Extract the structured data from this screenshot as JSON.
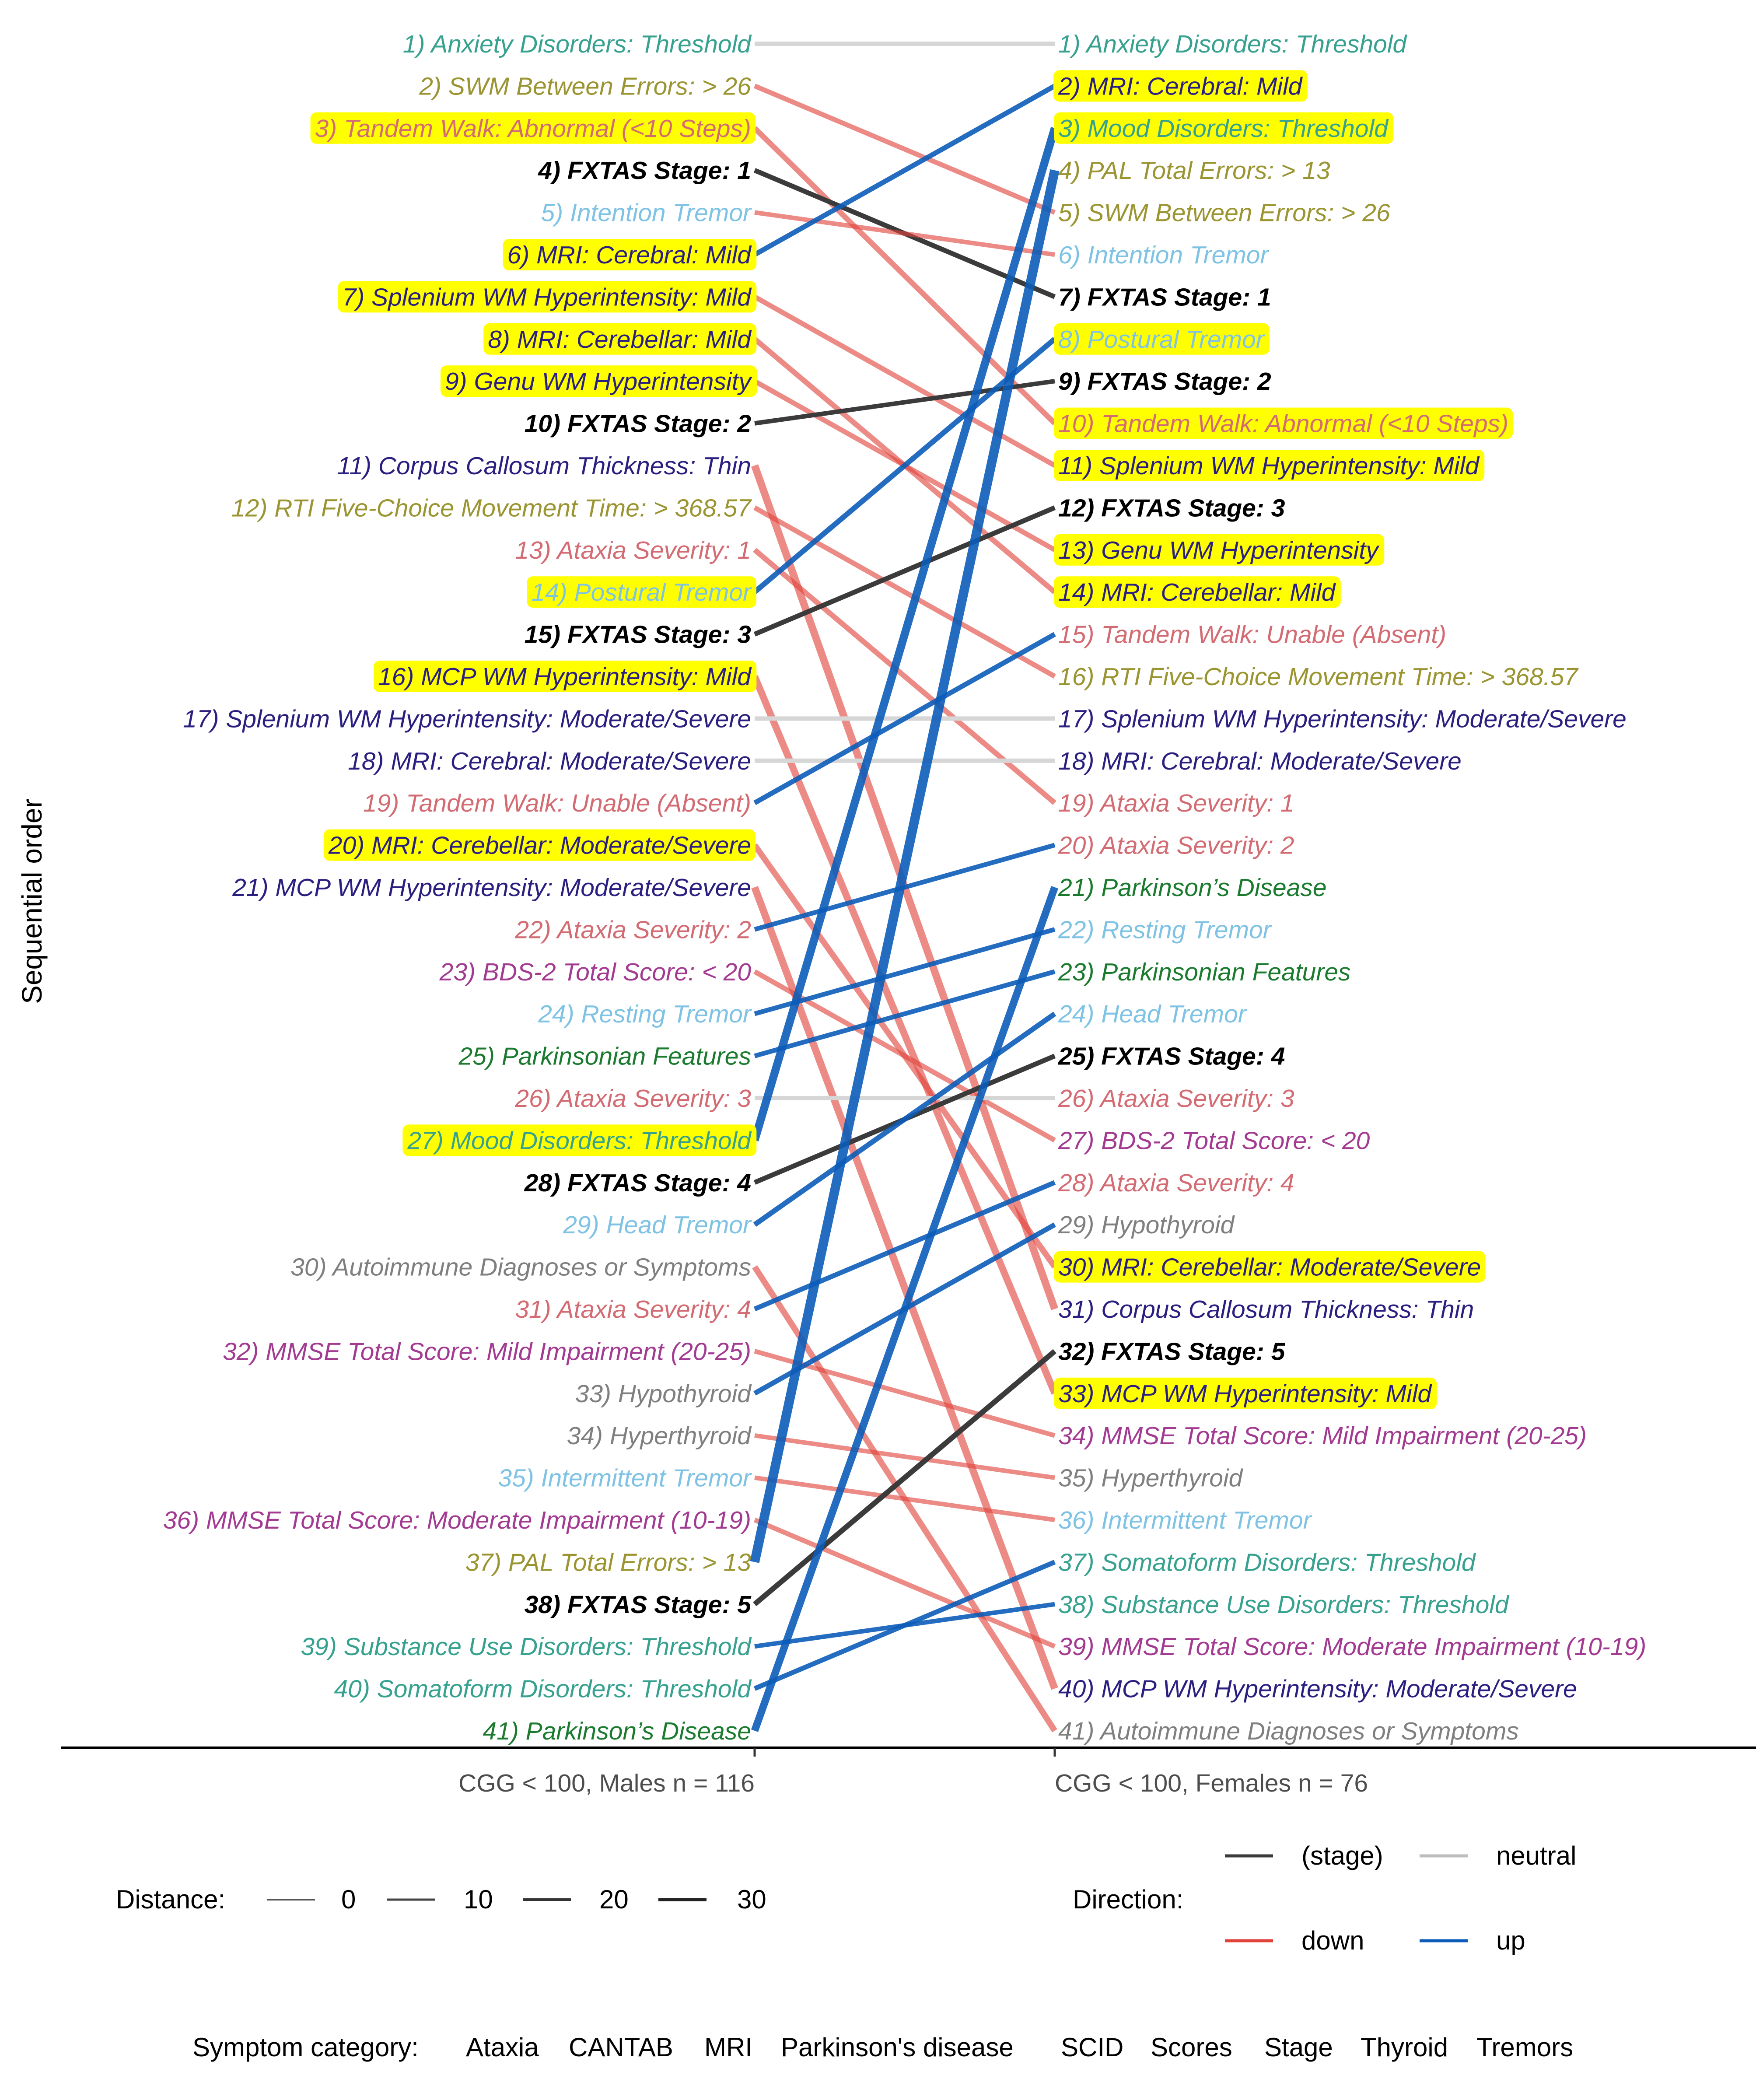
{
  "chart_data": {
    "type": "slope",
    "ylabel": "Sequential order",
    "columns": [
      "CGG < 100, Males n = 116",
      "CGG < 100, Females n = 76"
    ],
    "category_colors": {
      "Ataxia": "#d36b73",
      "CANTAB": "#9a9431",
      "MRI": "#2a1f80",
      "Parkinson's disease": "#1a7a2e",
      "SCID": "#36a18f",
      "Scores": "#a33a92",
      "Stage": "#000000",
      "Thyroid": "#7f7f7f",
      "Tremors": "#7ec2e4"
    },
    "direction_colors": {
      "(stage)": "#3b3b3b",
      "neutral": "#d6d6d6",
      "down": "#e0433b",
      "up": "#0b5cb8"
    },
    "highlight_color": "#ffff00",
    "males": [
      {
        "label": "1) Anxiety Disorders: Threshold",
        "cat": "SCID"
      },
      {
        "label": "2) SWM Between Errors: > 26",
        "cat": "CANTAB"
      },
      {
        "label": "3) Tandem Walk: Abnormal (<10 Steps)",
        "cat": "Ataxia",
        "hl": true
      },
      {
        "label": "4) FXTAS Stage: 1",
        "cat": "Stage"
      },
      {
        "label": "5) Intention Tremor",
        "cat": "Tremors"
      },
      {
        "label": "6) MRI: Cerebral: Mild",
        "cat": "MRI",
        "hl": true
      },
      {
        "label": "7) Splenium WM Hyperintensity: Mild",
        "cat": "MRI",
        "hl": true
      },
      {
        "label": "8) MRI: Cerebellar: Mild",
        "cat": "MRI",
        "hl": true
      },
      {
        "label": "9) Genu WM Hyperintensity",
        "cat": "MRI",
        "hl": true
      },
      {
        "label": "10) FXTAS Stage: 2",
        "cat": "Stage"
      },
      {
        "label": "11) Corpus Callosum Thickness: Thin",
        "cat": "MRI"
      },
      {
        "label": "12) RTI Five-Choice Movement Time: > 368.57",
        "cat": "CANTAB"
      },
      {
        "label": "13) Ataxia Severity: 1",
        "cat": "Ataxia"
      },
      {
        "label": "14) Postural Tremor",
        "cat": "Tremors",
        "hl": true
      },
      {
        "label": "15) FXTAS Stage: 3",
        "cat": "Stage"
      },
      {
        "label": "16) MCP WM Hyperintensity: Mild",
        "cat": "MRI",
        "hl": true
      },
      {
        "label": "17) Splenium WM Hyperintensity: Moderate/Severe",
        "cat": "MRI"
      },
      {
        "label": "18) MRI: Cerebral: Moderate/Severe",
        "cat": "MRI"
      },
      {
        "label": "19) Tandem Walk: Unable (Absent)",
        "cat": "Ataxia"
      },
      {
        "label": "20) MRI: Cerebellar: Moderate/Severe",
        "cat": "MRI",
        "hl": true
      },
      {
        "label": "21) MCP WM Hyperintensity: Moderate/Severe",
        "cat": "MRI"
      },
      {
        "label": "22) Ataxia Severity: 2",
        "cat": "Ataxia"
      },
      {
        "label": "23) BDS-2 Total Score: < 20",
        "cat": "Scores"
      },
      {
        "label": "24) Resting Tremor",
        "cat": "Tremors"
      },
      {
        "label": "25) Parkinsonian Features",
        "cat": "Parkinson's disease"
      },
      {
        "label": "26) Ataxia Severity: 3",
        "cat": "Ataxia"
      },
      {
        "label": "27) Mood Disorders: Threshold",
        "cat": "SCID",
        "hl": true
      },
      {
        "label": "28) FXTAS Stage: 4",
        "cat": "Stage"
      },
      {
        "label": "29) Head Tremor",
        "cat": "Tremors"
      },
      {
        "label": "30) Autoimmune Diagnoses or Symptoms",
        "cat": "Thyroid"
      },
      {
        "label": "31) Ataxia Severity: 4",
        "cat": "Ataxia"
      },
      {
        "label": "32) MMSE Total Score: Mild Impairment (20-25)",
        "cat": "Scores"
      },
      {
        "label": "33) Hypothyroid",
        "cat": "Thyroid"
      },
      {
        "label": "34) Hyperthyroid",
        "cat": "Thyroid"
      },
      {
        "label": "35) Intermittent Tremor",
        "cat": "Tremors"
      },
      {
        "label": "36) MMSE Total Score: Moderate Impairment (10-19)",
        "cat": "Scores"
      },
      {
        "label": "37) PAL Total Errors: > 13",
        "cat": "CANTAB"
      },
      {
        "label": "38) FXTAS Stage: 5",
        "cat": "Stage"
      },
      {
        "label": "39) Substance Use Disorders: Threshold",
        "cat": "SCID"
      },
      {
        "label": "40) Somatoform Disorders: Threshold",
        "cat": "SCID"
      },
      {
        "label": "41) Parkinson’s Disease",
        "cat": "Parkinson's disease"
      }
    ],
    "females": [
      {
        "label": "1) Anxiety Disorders: Threshold",
        "cat": "SCID"
      },
      {
        "label": "2) MRI: Cerebral: Mild",
        "cat": "MRI",
        "hl": true
      },
      {
        "label": "3) Mood Disorders: Threshold",
        "cat": "SCID",
        "hl": true
      },
      {
        "label": "4) PAL Total Errors: > 13",
        "cat": "CANTAB"
      },
      {
        "label": "5) SWM Between Errors: > 26",
        "cat": "CANTAB"
      },
      {
        "label": "6) Intention Tremor",
        "cat": "Tremors"
      },
      {
        "label": "7) FXTAS Stage: 1",
        "cat": "Stage"
      },
      {
        "label": "8) Postural Tremor",
        "cat": "Tremors",
        "hl": true
      },
      {
        "label": "9) FXTAS Stage: 2",
        "cat": "Stage"
      },
      {
        "label": "10) Tandem Walk: Abnormal (<10 Steps)",
        "cat": "Ataxia",
        "hl": true
      },
      {
        "label": "11) Splenium WM Hyperintensity: Mild",
        "cat": "MRI",
        "hl": true
      },
      {
        "label": "12) FXTAS Stage: 3",
        "cat": "Stage"
      },
      {
        "label": "13) Genu WM Hyperintensity",
        "cat": "MRI",
        "hl": true
      },
      {
        "label": "14) MRI: Cerebellar: Mild",
        "cat": "MRI",
        "hl": true
      },
      {
        "label": "15) Tandem Walk: Unable (Absent)",
        "cat": "Ataxia"
      },
      {
        "label": "16) RTI Five-Choice Movement Time: > 368.57",
        "cat": "CANTAB"
      },
      {
        "label": "17) Splenium WM Hyperintensity: Moderate/Severe",
        "cat": "MRI"
      },
      {
        "label": "18) MRI: Cerebral: Moderate/Severe",
        "cat": "MRI"
      },
      {
        "label": "19) Ataxia Severity: 1",
        "cat": "Ataxia"
      },
      {
        "label": "20) Ataxia Severity: 2",
        "cat": "Ataxia"
      },
      {
        "label": "21) Parkinson’s Disease",
        "cat": "Parkinson's disease"
      },
      {
        "label": "22) Resting Tremor",
        "cat": "Tremors"
      },
      {
        "label": "23) Parkinsonian Features",
        "cat": "Parkinson's disease"
      },
      {
        "label": "24) Head Tremor",
        "cat": "Tremors"
      },
      {
        "label": "25) FXTAS Stage: 4",
        "cat": "Stage"
      },
      {
        "label": "26) Ataxia Severity: 3",
        "cat": "Ataxia"
      },
      {
        "label": "27) BDS-2 Total Score: < 20",
        "cat": "Scores"
      },
      {
        "label": "28) Ataxia Severity: 4",
        "cat": "Ataxia"
      },
      {
        "label": "29) Hypothyroid",
        "cat": "Thyroid"
      },
      {
        "label": "30) MRI: Cerebellar: Moderate/Severe",
        "cat": "MRI",
        "hl": true
      },
      {
        "label": "31) Corpus Callosum Thickness: Thin",
        "cat": "MRI"
      },
      {
        "label": "32) FXTAS Stage: 5",
        "cat": "Stage"
      },
      {
        "label": "33) MCP WM Hyperintensity: Mild",
        "cat": "MRI",
        "hl": true
      },
      {
        "label": "34) MMSE Total Score: Mild Impairment (20-25)",
        "cat": "Scores"
      },
      {
        "label": "35) Hyperthyroid",
        "cat": "Thyroid"
      },
      {
        "label": "36) Intermittent Tremor",
        "cat": "Tremors"
      },
      {
        "label": "37) Somatoform Disorders: Threshold",
        "cat": "SCID"
      },
      {
        "label": "38) Substance Use Disorders: Threshold",
        "cat": "SCID"
      },
      {
        "label": "39) MMSE Total Score: Moderate Impairment (10-19)",
        "cat": "Scores"
      },
      {
        "label": "40) MCP WM Hyperintensity: Moderate/Severe",
        "cat": "MRI"
      },
      {
        "label": "41) Autoimmune Diagnoses or Symptoms",
        "cat": "Thyroid"
      }
    ],
    "connections": [
      {
        "m": 1,
        "f": 1,
        "dir": "neutral"
      },
      {
        "m": 2,
        "f": 5,
        "dir": "down"
      },
      {
        "m": 3,
        "f": 10,
        "dir": "down"
      },
      {
        "m": 4,
        "f": 7,
        "dir": "(stage)"
      },
      {
        "m": 5,
        "f": 6,
        "dir": "down"
      },
      {
        "m": 6,
        "f": 2,
        "dir": "up"
      },
      {
        "m": 7,
        "f": 11,
        "dir": "down"
      },
      {
        "m": 8,
        "f": 14,
        "dir": "down"
      },
      {
        "m": 9,
        "f": 13,
        "dir": "down"
      },
      {
        "m": 10,
        "f": 9,
        "dir": "(stage)"
      },
      {
        "m": 11,
        "f": 31,
        "dir": "down"
      },
      {
        "m": 12,
        "f": 16,
        "dir": "down"
      },
      {
        "m": 13,
        "f": 19,
        "dir": "down"
      },
      {
        "m": 14,
        "f": 8,
        "dir": "up"
      },
      {
        "m": 15,
        "f": 12,
        "dir": "(stage)"
      },
      {
        "m": 16,
        "f": 33,
        "dir": "down"
      },
      {
        "m": 17,
        "f": 17,
        "dir": "neutral"
      },
      {
        "m": 18,
        "f": 18,
        "dir": "neutral"
      },
      {
        "m": 19,
        "f": 15,
        "dir": "up"
      },
      {
        "m": 20,
        "f": 30,
        "dir": "down"
      },
      {
        "m": 21,
        "f": 40,
        "dir": "down"
      },
      {
        "m": 22,
        "f": 20,
        "dir": "up"
      },
      {
        "m": 23,
        "f": 27,
        "dir": "down"
      },
      {
        "m": 24,
        "f": 22,
        "dir": "up"
      },
      {
        "m": 25,
        "f": 23,
        "dir": "up"
      },
      {
        "m": 26,
        "f": 26,
        "dir": "neutral"
      },
      {
        "m": 27,
        "f": 3,
        "dir": "up"
      },
      {
        "m": 28,
        "f": 25,
        "dir": "(stage)"
      },
      {
        "m": 29,
        "f": 24,
        "dir": "up"
      },
      {
        "m": 30,
        "f": 41,
        "dir": "down"
      },
      {
        "m": 31,
        "f": 28,
        "dir": "up"
      },
      {
        "m": 32,
        "f": 34,
        "dir": "down"
      },
      {
        "m": 33,
        "f": 29,
        "dir": "up"
      },
      {
        "m": 34,
        "f": 35,
        "dir": "down"
      },
      {
        "m": 35,
        "f": 36,
        "dir": "down"
      },
      {
        "m": 36,
        "f": 39,
        "dir": "down"
      },
      {
        "m": 37,
        "f": 4,
        "dir": "up"
      },
      {
        "m": 38,
        "f": 32,
        "dir": "(stage)"
      },
      {
        "m": 39,
        "f": 38,
        "dir": "up"
      },
      {
        "m": 40,
        "f": 37,
        "dir": "up"
      },
      {
        "m": 41,
        "f": 21,
        "dir": "up"
      }
    ],
    "legend": {
      "distance_title": "Distance:",
      "distance_values": [
        "0",
        "10",
        "20",
        "30"
      ],
      "direction_title": "Direction:",
      "direction_entries": [
        "(stage)",
        "neutral",
        "down",
        "up"
      ],
      "category_title": "Symptom category:",
      "category_entries": [
        "Ataxia",
        "CANTAB",
        "MRI",
        "Parkinson's disease",
        "SCID",
        "Scores",
        "Stage",
        "Thyroid",
        "Tremors"
      ],
      "position": "bottom"
    }
  }
}
